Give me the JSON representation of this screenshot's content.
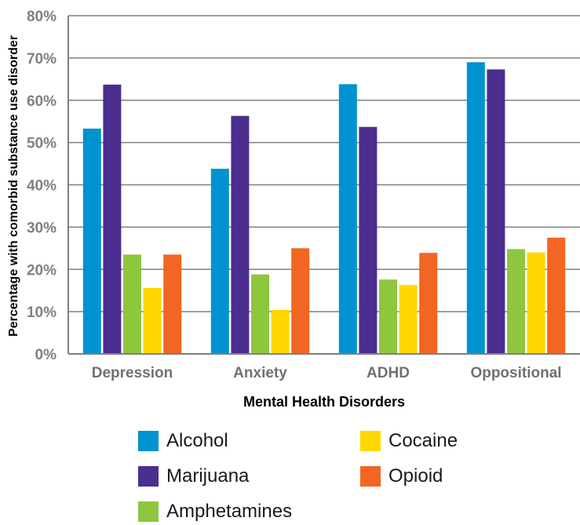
{
  "chart_data": {
    "type": "bar",
    "xlabel": "Mental Health Disorders",
    "ylabel": "Percentage with comorbid substance use disorder",
    "categories": [
      "Depression",
      "Anxiety",
      "ADHD",
      "Oppositional"
    ],
    "ylim": [
      0,
      80
    ],
    "yticks": [
      "0%",
      "10%",
      "20%",
      "30%",
      "40%",
      "50%",
      "60%",
      "70%",
      "80%"
    ],
    "grid": true,
    "legend_position": "bottom",
    "series": [
      {
        "name": "Alcohol",
        "color": "#0093d0",
        "values": [
          53.3,
          43.8,
          63.8,
          69.0
        ]
      },
      {
        "name": "Marijuana",
        "color": "#4b2e8f",
        "values": [
          63.7,
          56.3,
          53.7,
          67.3
        ]
      },
      {
        "name": "Amphetamines",
        "color": "#8dc63f",
        "values": [
          23.5,
          18.8,
          17.6,
          24.8
        ]
      },
      {
        "name": "Cocaine",
        "color": "#ffd700",
        "values": [
          15.6,
          10.4,
          16.3,
          24.0
        ]
      },
      {
        "name": "Opioid",
        "color": "#f26522",
        "values": [
          23.5,
          25.0,
          23.9,
          27.5
        ]
      }
    ]
  }
}
